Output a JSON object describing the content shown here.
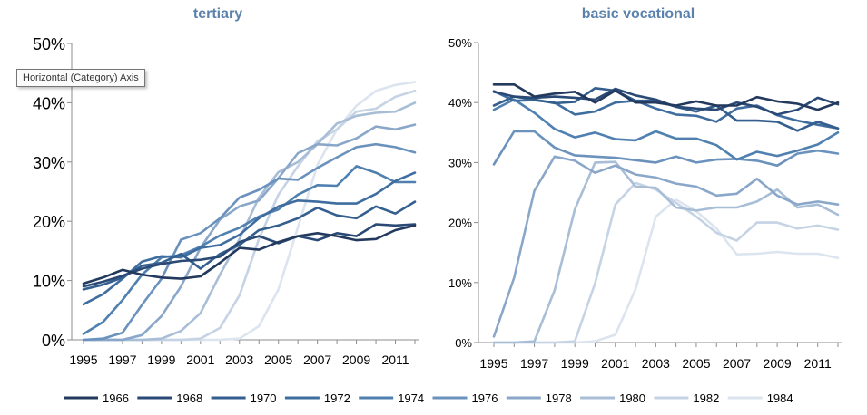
{
  "tooltip": "Horizontal (Category) Axis",
  "colors": [
    "#23395d",
    "#2a4a75",
    "#335e8e",
    "#3f6d9f",
    "#4f80b0",
    "#6b92bd",
    "#8aa7c9",
    "#a8bdd6",
    "#c5d3e4",
    "#dbe4ef"
  ],
  "chart_data": [
    {
      "type": "line",
      "title": "tertiary",
      "xlabel": "",
      "ylabel": "",
      "ylim": [
        0,
        50
      ],
      "yticks": [
        "0%",
        "10%",
        "20%",
        "30%",
        "40%",
        "50%"
      ],
      "xticks": [
        "1995",
        "1997",
        "1999",
        "2001",
        "2003",
        "2005",
        "2007",
        "2009",
        "2011"
      ],
      "x": [
        1995,
        1996,
        1997,
        1998,
        1999,
        2000,
        2001,
        2002,
        2003,
        2004,
        2005,
        2006,
        2007,
        2008,
        2009,
        2010,
        2011,
        2012
      ],
      "series": [
        {
          "name": "1966",
          "values": [
            9.5,
            10.5,
            11.8,
            11.0,
            10.5,
            10.3,
            10.7,
            13.0,
            15.5,
            15.2,
            16.5,
            17.5,
            18.0,
            17.5,
            16.8,
            17.0,
            18.5,
            19.3
          ]
        },
        {
          "name": "1968",
          "values": [
            9.0,
            9.8,
            10.8,
            12.0,
            12.8,
            13.3,
            13.5,
            14.0,
            16.5,
            17.5,
            16.3,
            17.5,
            16.8,
            18.0,
            17.5,
            19.5,
            19.3,
            19.5
          ]
        },
        {
          "name": "1970",
          "values": [
            8.5,
            9.3,
            10.5,
            12.5,
            13.0,
            14.5,
            12.0,
            14.5,
            16.0,
            18.5,
            19.3,
            20.5,
            22.3,
            21.0,
            20.5,
            22.5,
            21.3,
            23.3
          ]
        },
        {
          "name": "1972",
          "values": [
            6.0,
            7.7,
            10.3,
            13.2,
            14.1,
            13.9,
            15.5,
            16.0,
            17.7,
            20.5,
            22.5,
            23.5,
            23.3,
            23.0,
            23.0,
            24.6,
            26.8,
            28.2
          ]
        },
        {
          "name": "1974",
          "values": [
            1.0,
            3.0,
            6.7,
            11.0,
            13.9,
            14.3,
            15.7,
            17.6,
            18.9,
            20.8,
            22.0,
            24.5,
            26.1,
            26.0,
            29.3,
            28.2,
            26.6,
            26.6
          ]
        },
        {
          "name": "1976",
          "values": [
            0,
            0.2,
            1.2,
            5.9,
            10.3,
            16.9,
            18.0,
            20.5,
            24.0,
            25.3,
            27.2,
            27.0,
            29.0,
            30.8,
            32.5,
            33.0,
            32.5,
            31.6
          ]
        },
        {
          "name": "1978",
          "values": [
            0,
            0,
            0,
            0.8,
            4.0,
            9.0,
            15.5,
            20.3,
            22.5,
            23.5,
            27.3,
            31.5,
            33.0,
            32.8,
            34.0,
            36.0,
            35.5,
            36.3
          ]
        },
        {
          "name": "1980",
          "values": [
            0,
            0,
            0,
            0,
            0.2,
            1.5,
            4.5,
            11.0,
            17.0,
            24.0,
            28.3,
            30.0,
            33.0,
            36.5,
            37.8,
            38.3,
            38.5,
            40.0
          ]
        },
        {
          "name": "1982",
          "values": [
            0,
            0,
            0,
            0,
            0,
            0,
            0.2,
            2.0,
            7.5,
            17.0,
            24.5,
            29.3,
            33.5,
            35.5,
            38.5,
            39.0,
            41.0,
            42.0
          ]
        },
        {
          "name": "1984",
          "values": [
            0,
            0,
            0,
            0,
            0,
            0,
            0,
            0,
            0.2,
            2.3,
            8.5,
            19.0,
            29.5,
            35.5,
            39.5,
            42.0,
            43.0,
            43.5
          ]
        }
      ]
    },
    {
      "type": "line",
      "title": "basic vocational",
      "xlabel": "",
      "ylabel": "",
      "ylim": [
        0,
        50
      ],
      "yticks": [
        "0%",
        "10%",
        "20%",
        "30%",
        "40%",
        "50%"
      ],
      "xticks": [
        "1995",
        "1997",
        "1999",
        "2001",
        "2003",
        "2005",
        "2007",
        "2009",
        "2011"
      ],
      "x": [
        1995,
        1996,
        1997,
        1998,
        1999,
        2000,
        2001,
        2002,
        2003,
        2004,
        2005,
        2006,
        2007,
        2008,
        2009,
        2010,
        2011,
        2012
      ],
      "series": [
        {
          "name": "1966",
          "values": [
            43.0,
            43.0,
            41.0,
            41.5,
            41.8,
            40.0,
            42.0,
            40.0,
            40.0,
            39.5,
            40.2,
            39.5,
            39.5,
            40.9,
            40.2,
            39.8,
            38.8,
            40.0
          ]
        },
        {
          "name": "1968",
          "values": [
            41.8,
            41.0,
            40.8,
            41.0,
            40.8,
            40.5,
            42.3,
            41.2,
            40.5,
            39.3,
            39.0,
            38.8,
            40.0,
            39.3,
            38.0,
            38.8,
            40.8,
            39.7
          ]
        },
        {
          "name": "1970",
          "values": [
            39.5,
            41.0,
            40.5,
            39.9,
            40.1,
            42.4,
            42.0,
            40.3,
            40.3,
            39.3,
            38.5,
            39.5,
            37.0,
            37.0,
            36.8,
            35.3,
            36.8,
            35.7
          ]
        },
        {
          "name": "1972",
          "values": [
            41.9,
            40.3,
            40.4,
            40.0,
            38.0,
            38.5,
            40.0,
            40.3,
            39.0,
            38.0,
            37.8,
            36.8,
            39.0,
            39.5,
            37.9,
            37.0,
            36.3,
            35.7
          ]
        },
        {
          "name": "1974",
          "values": [
            38.8,
            40.5,
            38.3,
            35.6,
            34.2,
            35.0,
            33.9,
            33.7,
            35.2,
            34.0,
            34.0,
            32.9,
            30.5,
            31.8,
            31.1,
            32.0,
            33.0,
            35.0
          ]
        },
        {
          "name": "1976",
          "values": [
            29.7,
            35.2,
            35.2,
            32.5,
            31.2,
            31.0,
            30.8,
            30.4,
            30.0,
            31.0,
            30.0,
            30.5,
            30.6,
            30.3,
            29.5,
            31.5,
            32.0,
            31.5
          ]
        },
        {
          "name": "1978",
          "values": [
            1.0,
            10.8,
            25.3,
            31.0,
            30.3,
            28.3,
            29.5,
            28.0,
            27.5,
            26.5,
            26.0,
            24.5,
            24.8,
            27.3,
            24.5,
            23.0,
            23.5,
            23.0
          ]
        },
        {
          "name": "1980",
          "values": [
            0,
            0,
            0.2,
            8.7,
            22.2,
            30.0,
            30.1,
            26.0,
            25.8,
            22.5,
            22.0,
            22.5,
            22.5,
            23.5,
            25.5,
            22.5,
            23.0,
            21.3
          ]
        },
        {
          "name": "1982",
          "values": [
            0,
            0,
            0,
            0,
            0.2,
            9.9,
            23.0,
            26.6,
            25.5,
            23.3,
            21.0,
            18.3,
            17.0,
            20.0,
            20.0,
            19.0,
            19.5,
            18.8
          ]
        },
        {
          "name": "1984",
          "values": [
            0,
            0,
            0,
            0,
            0,
            0.2,
            1.3,
            8.9,
            21.0,
            23.8,
            21.9,
            19.0,
            14.7,
            14.8,
            15.1,
            14.8,
            14.8,
            14.1
          ]
        }
      ]
    }
  ]
}
